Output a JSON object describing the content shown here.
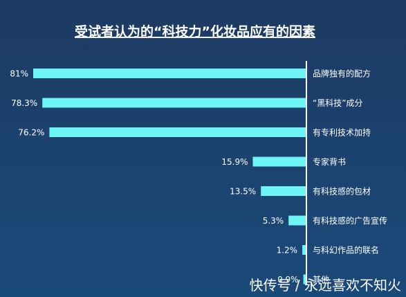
{
  "chart_data": {
    "type": "bar",
    "orientation": "horizontal",
    "title": "受试者认为的“科技力”化妆品应有的因素",
    "categories": [
      "品牌独有的配方",
      "“黑科技”成分",
      "有专利技术加持",
      "专家背书",
      "有科技感的包材",
      "有科技感的广告宣传",
      "与科幻作品的联名",
      "其他"
    ],
    "values": [
      81,
      78.3,
      76.2,
      15.9,
      13.5,
      5.3,
      1.2,
      0.9
    ],
    "value_labels": [
      "81%",
      "78.3%",
      "76.2%",
      "15.9%",
      "13.5%",
      "5.3%",
      "1.2%",
      "0.9%"
    ],
    "xlim": [
      0,
      81
    ],
    "grid": false,
    "legend": "none",
    "bar_color": "#6ef5f5",
    "axis_color": "#ffffff",
    "background_color": "#1c4370"
  },
  "watermark": {
    "text": "快传号 / 永远喜欢不知火"
  }
}
